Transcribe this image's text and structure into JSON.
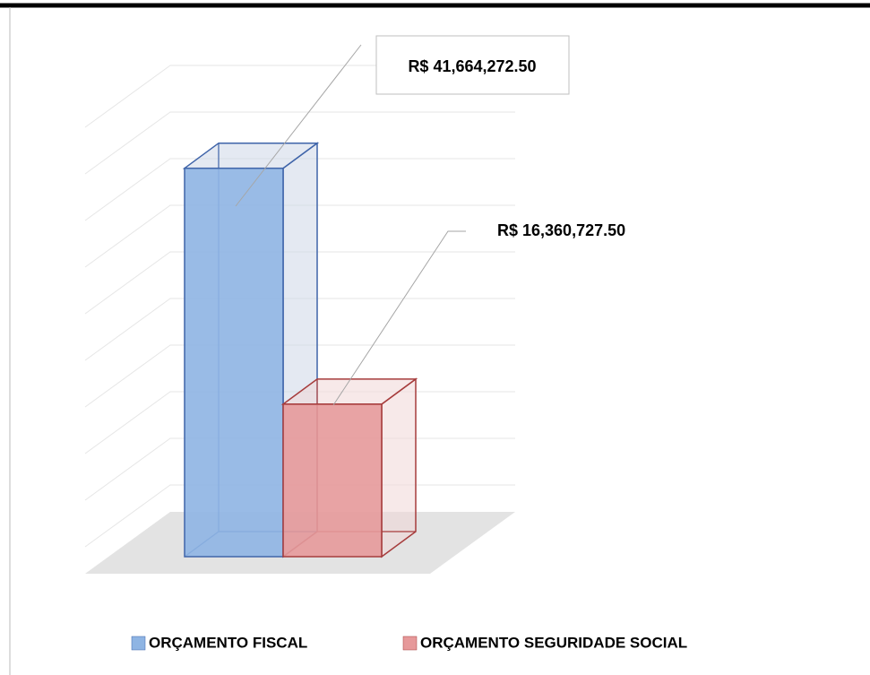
{
  "chart_data": {
    "type": "bar3d",
    "series": [
      {
        "name": "ORÇAMENTO FISCAL",
        "color": "#8eb4e3",
        "values": [
          41664272.5
        ],
        "value_labels": [
          "R$ 41,664,272.50"
        ]
      },
      {
        "name": "ORÇAMENTO SEGURIDADE SOCIAL",
        "color": "#e6999a",
        "values": [
          16360727.5
        ],
        "value_labels": [
          "R$ 16,360,727.50"
        ]
      }
    ],
    "ylim": [
      0,
      50000000
    ],
    "grid": true
  }
}
